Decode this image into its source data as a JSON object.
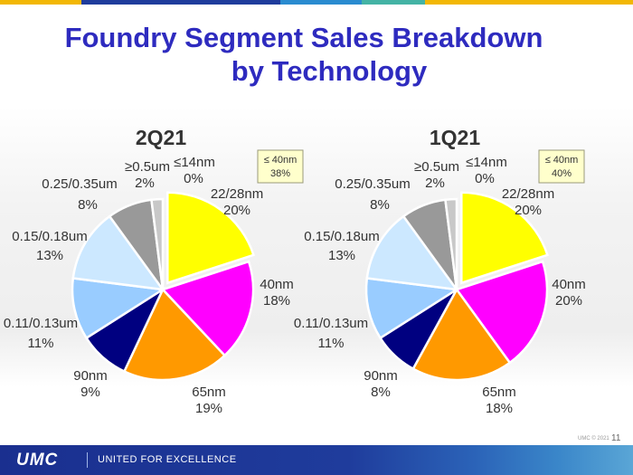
{
  "title_line1": "Foundry Segment Sales Breakdown",
  "title_line2": "by Technology",
  "chart_data": [
    {
      "type": "pie",
      "title": "2Q21",
      "badge": {
        "line1": "≤ 40nm",
        "line2": "38%"
      },
      "slices": [
        {
          "label": "22/28nm",
          "pct_label": "20%",
          "value": 20,
          "color": "#ffff00"
        },
        {
          "label": "40nm",
          "pct_label": "18%",
          "value": 18,
          "color": "#ff00ff"
        },
        {
          "label": "65nm",
          "pct_label": "19%",
          "value": 19,
          "color": "#ff9900"
        },
        {
          "label": "90nm",
          "pct_label": "9%",
          "value": 9,
          "color": "#000080"
        },
        {
          "label": "0.11/0.13um",
          "pct_label": "11%",
          "value": 11,
          "color": "#99ccff"
        },
        {
          "label": "0.15/0.18um",
          "pct_label": "13%",
          "value": 13,
          "color": "#cce8ff"
        },
        {
          "label": "0.25/0.35um",
          "pct_label": "8%",
          "value": 8,
          "color": "#999999"
        },
        {
          "label": "≥0.5um",
          "pct_label": "2%",
          "value": 2,
          "color": "#c8c8c8"
        },
        {
          "label": "≤14nm",
          "pct_label": "0%",
          "value": 0,
          "color": "#ffffff"
        }
      ]
    },
    {
      "type": "pie",
      "title": "1Q21",
      "badge": {
        "line1": "≤ 40nm",
        "line2": "40%"
      },
      "slices": [
        {
          "label": "22/28nm",
          "pct_label": "20%",
          "value": 20,
          "color": "#ffff00"
        },
        {
          "label": "40nm",
          "pct_label": "20%",
          "value": 20,
          "color": "#ff00ff"
        },
        {
          "label": "65nm",
          "pct_label": "18%",
          "value": 18,
          "color": "#ff9900"
        },
        {
          "label": "90nm",
          "pct_label": "8%",
          "value": 8,
          "color": "#000080"
        },
        {
          "label": "0.11/0.13um",
          "pct_label": "11%",
          "value": 11,
          "color": "#99ccff"
        },
        {
          "label": "0.15/0.18um",
          "pct_label": "13%",
          "value": 13,
          "color": "#cce8ff"
        },
        {
          "label": "0.25/0.35um",
          "pct_label": "8%",
          "value": 8,
          "color": "#999999"
        },
        {
          "label": "≥0.5um",
          "pct_label": "2%",
          "value": 2,
          "color": "#c8c8c8"
        },
        {
          "label": "≤14nm",
          "pct_label": "0%",
          "value": 0,
          "color": "#ffffff"
        }
      ]
    }
  ],
  "footer": {
    "logo": "UMC",
    "tagline": "UNITED FOR EXCELLENCE",
    "copyright": "UMC © 2021",
    "page_number": "11"
  },
  "top_bar_colors": [
    "#f2b705",
    "#1f3c9c",
    "#2a8bd0",
    "#44b3a5",
    "#f2b705"
  ]
}
